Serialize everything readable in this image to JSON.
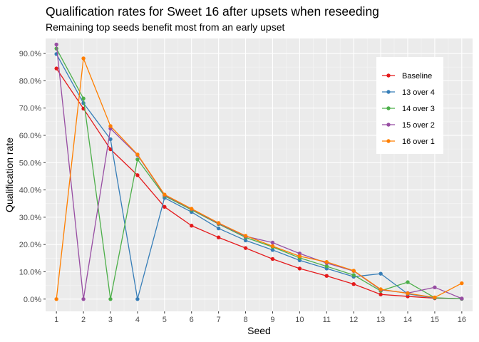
{
  "chart_data": {
    "type": "line",
    "title": "Qualification rates for Sweet 16 after upsets when reseeding",
    "subtitle": "Remaining top seeds benefit most from an early upset",
    "xlabel": "Seed",
    "ylabel": "Qualification rate",
    "x": [
      1,
      2,
      3,
      4,
      5,
      6,
      7,
      8,
      9,
      10,
      11,
      12,
      13,
      14,
      15,
      16
    ],
    "xlim": [
      0.6,
      16.4
    ],
    "ylim": [
      -0.045,
      0.955
    ],
    "y_ticks": [
      0,
      0.1,
      0.2,
      0.3,
      0.4,
      0.5,
      0.6,
      0.7,
      0.8,
      0.9
    ],
    "y_tick_labels": [
      "0.0%",
      "10.0%",
      "20.0%",
      "30.0%",
      "40.0%",
      "50.0%",
      "60.0%",
      "70.0%",
      "80.0%",
      "90.0%"
    ],
    "x_tick_labels": [
      "1",
      "2",
      "3",
      "4",
      "5",
      "6",
      "7",
      "8",
      "9",
      "10",
      "11",
      "12",
      "13",
      "14",
      "15",
      "16"
    ],
    "grid": true,
    "legend_position": "top-right",
    "series": [
      {
        "name": "Baseline",
        "color": "#E41A1C",
        "values": [
          0.845,
          0.698,
          0.549,
          0.454,
          0.338,
          0.269,
          0.226,
          0.187,
          0.147,
          0.112,
          0.085,
          0.055,
          0.017,
          0.01,
          0.003,
          0.001
        ]
      },
      {
        "name": "13 over 4",
        "color": "#377EB8",
        "values": [
          0.898,
          0.718,
          0.586,
          0.0,
          0.371,
          0.319,
          0.259,
          0.215,
          0.18,
          0.142,
          0.112,
          0.082,
          0.093,
          0.019,
          0.004,
          0.001
        ]
      },
      {
        "name": "14 over 3",
        "color": "#4DAF4A",
        "values": [
          0.918,
          0.735,
          0.0,
          0.512,
          0.378,
          0.327,
          0.275,
          0.226,
          0.191,
          0.151,
          0.12,
          0.088,
          0.03,
          0.062,
          0.005,
          0.001
        ]
      },
      {
        "name": "15 over 2",
        "color": "#984EA3",
        "values": [
          0.933,
          0.0,
          0.625,
          0.528,
          0.381,
          0.33,
          0.277,
          0.23,
          0.207,
          0.167,
          0.132,
          0.103,
          0.034,
          0.022,
          0.043,
          0.002
        ]
      },
      {
        "name": "16 over 1",
        "color": "#FF7F00",
        "values": [
          0.0,
          0.882,
          0.634,
          0.53,
          0.383,
          0.331,
          0.279,
          0.232,
          0.194,
          0.157,
          0.136,
          0.104,
          0.036,
          0.021,
          0.006,
          0.058
        ]
      }
    ]
  }
}
